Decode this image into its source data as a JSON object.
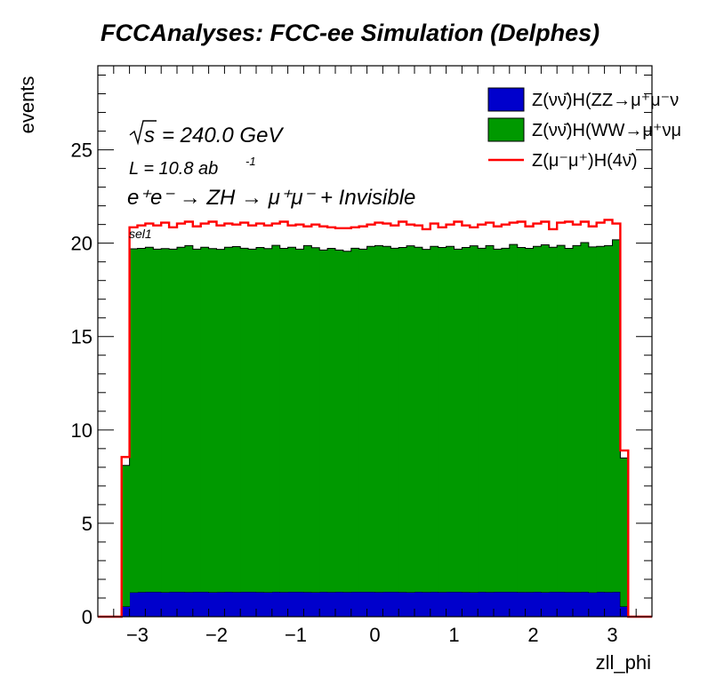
{
  "chart_data": {
    "type": "histogram",
    "title": "FCCAnalyses: FCC-ee Simulation (Delphes)",
    "xlabel": "zll_phi",
    "ylabel": "events",
    "xlim": [
      -3.5,
      3.5
    ],
    "ylim": [
      0,
      29.5
    ],
    "x_ticks": [
      "−3",
      "−2",
      "−1",
      "0",
      "1",
      "2",
      "3"
    ],
    "y_ticks": [
      "0",
      "5",
      "10",
      "15",
      "20",
      "25"
    ],
    "annotations": {
      "sqrt_s": "= 240.0 GeV",
      "lumi": "L = 10.8 ab",
      "lumi_exp": "-1",
      "process": "e⁺e⁻ → ZH → μ⁺μ⁻ + Invisible",
      "selection": "sel1"
    },
    "bin_edges_range": [
      -3.2,
      3.2
    ],
    "n_bins": 64,
    "series": [
      {
        "name": "Z(νν̄)H(ZZ→μ⁺μ⁻ν",
        "style": "stacked-fill",
        "color": "#0000cc",
        "values": [
          0.55,
          1.3,
          1.32,
          1.33,
          1.33,
          1.31,
          1.33,
          1.33,
          1.32,
          1.33,
          1.33,
          1.31,
          1.32,
          1.33,
          1.32,
          1.33,
          1.33,
          1.32,
          1.31,
          1.33,
          1.32,
          1.33,
          1.33,
          1.32,
          1.31,
          1.33,
          1.32,
          1.33,
          1.32,
          1.33,
          1.33,
          1.33,
          1.32,
          1.33,
          1.33,
          1.32,
          1.31,
          1.33,
          1.32,
          1.33,
          1.32,
          1.33,
          1.33,
          1.32,
          1.31,
          1.33,
          1.32,
          1.33,
          1.33,
          1.33,
          1.32,
          1.32,
          1.33,
          1.31,
          1.33,
          1.33,
          1.32,
          1.32,
          1.33,
          1.3,
          1.33,
          1.32,
          1.33,
          0.55
        ]
      },
      {
        "name": "Z(νν̄)H(WW→μ⁺νμ",
        "style": "stacked-fill",
        "color": "#009900",
        "values": [
          7.55,
          18.4,
          18.4,
          18.45,
          18.35,
          18.4,
          18.35,
          18.45,
          18.55,
          18.35,
          18.45,
          18.4,
          18.35,
          18.45,
          18.5,
          18.4,
          18.35,
          18.45,
          18.4,
          18.55,
          18.4,
          18.45,
          18.35,
          18.55,
          18.45,
          18.3,
          18.4,
          18.3,
          18.25,
          18.4,
          18.35,
          18.5,
          18.55,
          18.5,
          18.4,
          18.45,
          18.55,
          18.45,
          18.35,
          18.5,
          18.45,
          18.5,
          18.35,
          18.45,
          18.55,
          18.4,
          18.55,
          18.35,
          18.4,
          18.6,
          18.45,
          18.4,
          18.5,
          18.6,
          18.45,
          18.55,
          18.4,
          18.55,
          18.7,
          18.5,
          18.5,
          18.55,
          18.85,
          7.95
        ]
      },
      {
        "name": "Z(μ⁻μ⁺)H(4ν̄)",
        "style": "line",
        "color": "#ff0000",
        "values": [
          8.55,
          20.85,
          20.95,
          21.05,
          20.95,
          21.1,
          20.85,
          21.05,
          21.15,
          20.9,
          21.05,
          21.15,
          20.95,
          21.05,
          21.0,
          21.1,
          20.95,
          21.05,
          20.95,
          21.05,
          21.15,
          20.95,
          21.0,
          20.9,
          21.0,
          20.9,
          20.85,
          20.8,
          20.8,
          20.85,
          20.9,
          21.0,
          21.1,
          21.05,
          20.95,
          21.15,
          21.0,
          20.95,
          20.75,
          21.05,
          20.85,
          21.0,
          21.15,
          20.95,
          20.85,
          21.0,
          21.1,
          20.9,
          21.0,
          21.1,
          21.15,
          20.9,
          21.05,
          21.15,
          20.75,
          21.1,
          21.15,
          21.0,
          21.15,
          20.9,
          21.1,
          21.25,
          21.05,
          8.9
        ]
      }
    ]
  }
}
